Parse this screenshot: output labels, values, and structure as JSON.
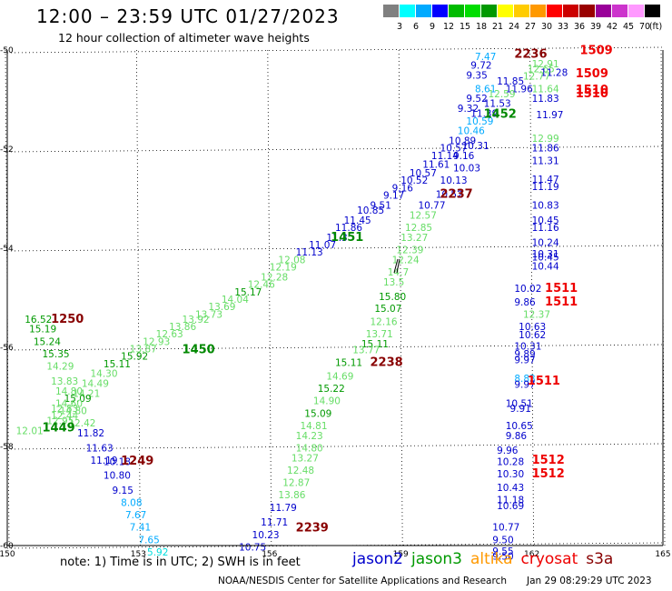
{
  "header": {
    "title": "12:00 – 23:59 UTC 01/27/2023",
    "subtitle": "12 hour collection of altimeter wave heights"
  },
  "scale": {
    "unit": "(ft)",
    "colors": [
      "#808080",
      "#00ffff",
      "#00aaff",
      "#0000ff",
      "#00bb00",
      "#00dd00",
      "#009900",
      "#ffff00",
      "#ffcc00",
      "#ff9900",
      "#ff0000",
      "#cc0000",
      "#990000",
      "#990099",
      "#cc33cc",
      "#ff99ff",
      "#000000"
    ],
    "labels": [
      "3",
      "6",
      "9",
      "12",
      "15",
      "18",
      "21",
      "24",
      "27",
      "30",
      "33",
      "36",
      "39",
      "42",
      "45",
      "70"
    ]
  },
  "axes": {
    "lon_ticks": [
      "150",
      "153",
      "156",
      "159",
      "162",
      "165"
    ],
    "lat_ticks": [
      "-50",
      "-52",
      "-54",
      "-56",
      "-58",
      "-60"
    ]
  },
  "passes": [
    {
      "id": "1509a",
      "text": "1509",
      "lon": 163.1,
      "lat": -50.08,
      "color": "#ee0000"
    },
    {
      "id": "1509b",
      "text": "1509",
      "lon": 163.0,
      "lat": -50.55,
      "color": "#ee0000"
    },
    {
      "id": "1510a",
      "text": "1510",
      "lon": 163.0,
      "lat": -50.88,
      "color": "#ee0000"
    },
    {
      "id": "1510b",
      "text": "1510",
      "lon": 163.0,
      "lat": -50.95,
      "color": "#ee0000"
    },
    {
      "id": "2236",
      "text": "2236",
      "lon": 161.6,
      "lat": -50.16,
      "color": "#880000"
    },
    {
      "id": "1452",
      "text": "1452",
      "lon": 160.9,
      "lat": -51.37,
      "color": "#008800"
    },
    {
      "id": "2237",
      "text": "2237",
      "lon": 159.9,
      "lat": -52.98,
      "color": "#880000"
    },
    {
      "id": "1451",
      "text": "1451",
      "lon": 157.4,
      "lat": -53.85,
      "color": "#008800"
    },
    {
      "id": "1511a",
      "text": "1511",
      "lon": 162.3,
      "lat": -54.88,
      "color": "#ee0000"
    },
    {
      "id": "1511b",
      "text": "1511",
      "lon": 162.3,
      "lat": -55.16,
      "color": "#ee0000"
    },
    {
      "id": "1511c",
      "text": "1511",
      "lon": 161.9,
      "lat": -56.75,
      "color": "#ee0000"
    },
    {
      "id": "1250",
      "text": "1250",
      "lon": 151.0,
      "lat": -55.5,
      "color": "#880000"
    },
    {
      "id": "1450",
      "text": "1450",
      "lon": 154.0,
      "lat": -56.12,
      "color": "#008800"
    },
    {
      "id": "2238",
      "text": "2238",
      "lon": 158.3,
      "lat": -56.38,
      "color": "#880000"
    },
    {
      "id": "1449",
      "text": "1449",
      "lon": 150.8,
      "lat": -57.7,
      "color": "#008800"
    },
    {
      "id": "1249",
      "text": "1249",
      "lon": 152.6,
      "lat": -58.37,
      "color": "#880000"
    },
    {
      "id": "1512a",
      "text": "1512",
      "lon": 162.0,
      "lat": -58.35,
      "color": "#ee0000"
    },
    {
      "id": "1512b",
      "text": "1512",
      "lon": 162.0,
      "lat": -58.62,
      "color": "#ee0000"
    },
    {
      "id": "2239",
      "text": "2239",
      "lon": 156.6,
      "lat": -59.72,
      "color": "#880000"
    }
  ],
  "swh_labels": [
    {
      "text": "7.47",
      "lon": 160.7,
      "lat": -50.2,
      "color": "#00aaff"
    },
    {
      "text": "9.72",
      "lon": 160.6,
      "lat": -50.38,
      "color": "#0000cc"
    },
    {
      "text": "12.91",
      "lon": 162.0,
      "lat": -50.35,
      "color": "#66dd66"
    },
    {
      "text": "12.65",
      "lon": 161.9,
      "lat": -50.45,
      "color": "#66dd66"
    },
    {
      "text": "9.35",
      "lon": 160.5,
      "lat": -50.58,
      "color": "#0000cc"
    },
    {
      "text": "11.85",
      "lon": 161.2,
      "lat": -50.7,
      "color": "#0000cc"
    },
    {
      "text": "11.28",
      "lon": 162.2,
      "lat": -50.52,
      "color": "#0000cc"
    },
    {
      "text": "12.77",
      "lon": 161.8,
      "lat": -50.6,
      "color": "#66dd66"
    },
    {
      "text": "8.61",
      "lon": 160.7,
      "lat": -50.85,
      "color": "#00aaff"
    },
    {
      "text": "11.96",
      "lon": 161.4,
      "lat": -50.85,
      "color": "#0000cc"
    },
    {
      "text": "9.52",
      "lon": 160.5,
      "lat": -51.05,
      "color": "#0000cc"
    },
    {
      "text": "12.59",
      "lon": 161.0,
      "lat": -50.95,
      "color": "#66dd66"
    },
    {
      "text": "11.53",
      "lon": 160.9,
      "lat": -51.15,
      "color": "#0000cc"
    },
    {
      "text": "11.64",
      "lon": 162.0,
      "lat": -50.85,
      "color": "#66dd66"
    },
    {
      "text": "11.83",
      "lon": 162.0,
      "lat": -51.05,
      "color": "#0000cc"
    },
    {
      "text": "9.32",
      "lon": 160.3,
      "lat": -51.25,
      "color": "#0000cc"
    },
    {
      "text": "11.39",
      "lon": 160.6,
      "lat": -51.35,
      "color": "#0000cc"
    },
    {
      "text": "11.97",
      "lon": 162.1,
      "lat": -51.38,
      "color": "#0000cc"
    },
    {
      "text": "10.59",
      "lon": 160.5,
      "lat": -51.5,
      "color": "#00aaff"
    },
    {
      "text": "10.46",
      "lon": 160.3,
      "lat": -51.7,
      "color": "#00aaff"
    },
    {
      "text": "10.89",
      "lon": 160.1,
      "lat": -51.9,
      "color": "#0000cc"
    },
    {
      "text": "12.99",
      "lon": 162.0,
      "lat": -51.85,
      "color": "#66dd66"
    },
    {
      "text": "10.31",
      "lon": 160.4,
      "lat": -52.0,
      "color": "#0000cc"
    },
    {
      "text": "10.57",
      "lon": 159.9,
      "lat": -52.05,
      "color": "#0000cc"
    },
    {
      "text": "11.86",
      "lon": 162.0,
      "lat": -52.05,
      "color": "#0000cc"
    },
    {
      "text": "11.14",
      "lon": 159.7,
      "lat": -52.2,
      "color": "#0000cc"
    },
    {
      "text": "9.16",
      "lon": 160.2,
      "lat": -52.2,
      "color": "#0000cc"
    },
    {
      "text": "11.31",
      "lon": 162.0,
      "lat": -52.3,
      "color": "#0000cc"
    },
    {
      "text": "11.61",
      "lon": 159.5,
      "lat": -52.38,
      "color": "#0000cc"
    },
    {
      "text": "10.03",
      "lon": 160.2,
      "lat": -52.45,
      "color": "#0000cc"
    },
    {
      "text": "10.57",
      "lon": 159.2,
      "lat": -52.55,
      "color": "#0000cc"
    },
    {
      "text": "10.13",
      "lon": 159.9,
      "lat": -52.7,
      "color": "#0000cc"
    },
    {
      "text": "11.47",
      "lon": 162.0,
      "lat": -52.68,
      "color": "#0000cc"
    },
    {
      "text": "11.19",
      "lon": 162.0,
      "lat": -52.83,
      "color": "#0000cc"
    },
    {
      "text": "10.52",
      "lon": 159.0,
      "lat": -52.7,
      "color": "#0000cc"
    },
    {
      "text": "9.16",
      "lon": 158.8,
      "lat": -52.85,
      "color": "#0000cc"
    },
    {
      "text": "10.52",
      "lon": 159.8,
      "lat": -52.98,
      "color": "#0000cc"
    },
    {
      "text": "9.17",
      "lon": 158.6,
      "lat": -53.0,
      "color": "#0000cc"
    },
    {
      "text": "10.77",
      "lon": 159.4,
      "lat": -53.2,
      "color": "#0000cc"
    },
    {
      "text": "9.51",
      "lon": 158.3,
      "lat": -53.2,
      "color": "#0000cc"
    },
    {
      "text": "10.83",
      "lon": 162.0,
      "lat": -53.2,
      "color": "#0000cc"
    },
    {
      "text": "10.85",
      "lon": 158.0,
      "lat": -53.3,
      "color": "#0000cc"
    },
    {
      "text": "12.57",
      "lon": 159.2,
      "lat": -53.4,
      "color": "#66dd66"
    },
    {
      "text": "10.45",
      "lon": 162.0,
      "lat": -53.5,
      "color": "#0000cc"
    },
    {
      "text": "11.45",
      "lon": 157.7,
      "lat": -53.5,
      "color": "#0000cc"
    },
    {
      "text": "11.16",
      "lon": 162.0,
      "lat": -53.65,
      "color": "#0000cc"
    },
    {
      "text": "11.86",
      "lon": 157.5,
      "lat": -53.65,
      "color": "#0000cc"
    },
    {
      "text": "12.85",
      "lon": 159.1,
      "lat": -53.65,
      "color": "#66dd66"
    },
    {
      "text": "11.3",
      "lon": 157.3,
      "lat": -53.85,
      "color": "#0000cc"
    },
    {
      "text": "13.27",
      "lon": 159.0,
      "lat": -53.85,
      "color": "#66dd66"
    },
    {
      "text": "10.24",
      "lon": 162.0,
      "lat": -53.95,
      "color": "#0000cc"
    },
    {
      "text": "11.07",
      "lon": 156.9,
      "lat": -54.0,
      "color": "#0000cc"
    },
    {
      "text": "12.39",
      "lon": 158.9,
      "lat": -54.1,
      "color": "#66dd66"
    },
    {
      "text": "10.31",
      "lon": 162.0,
      "lat": -54.18,
      "color": "#0000cc"
    },
    {
      "text": "11.13",
      "lon": 156.6,
      "lat": -54.15,
      "color": "#0000cc"
    },
    {
      "text": "10.45",
      "lon": 162.0,
      "lat": -54.25,
      "color": "#0000cc"
    },
    {
      "text": "12.08",
      "lon": 156.2,
      "lat": -54.3,
      "color": "#66dd66"
    },
    {
      "text": "12.24",
      "lon": 158.8,
      "lat": -54.3,
      "color": "#66dd66"
    },
    {
      "text": "10.44",
      "lon": 162.0,
      "lat": -54.43,
      "color": "#0000cc"
    },
    {
      "text": "12.19",
      "lon": 156.0,
      "lat": -54.45,
      "color": "#66dd66"
    },
    {
      "text": "14.7",
      "lon": 158.7,
      "lat": -54.55,
      "color": "#66dd66"
    },
    {
      "text": "12.28",
      "lon": 155.8,
      "lat": -54.65,
      "color": "#66dd66"
    },
    {
      "text": "13.5",
      "lon": 158.6,
      "lat": -54.75,
      "color": "#66dd66"
    },
    {
      "text": "12.46",
      "lon": 155.5,
      "lat": -54.8,
      "color": "#66dd66"
    },
    {
      "text": "10.02",
      "lon": 161.6,
      "lat": -54.88,
      "color": "#0000cc"
    },
    {
      "text": "15.17",
      "lon": 155.2,
      "lat": -54.95,
      "color": "#009900"
    },
    {
      "text": "15.80",
      "lon": 158.5,
      "lat": -55.05,
      "color": "#009900"
    },
    {
      "text": "14.04",
      "lon": 154.9,
      "lat": -55.1,
      "color": "#66dd66"
    },
    {
      "text": "9.86",
      "lon": 161.6,
      "lat": -55.16,
      "color": "#0000cc"
    },
    {
      "text": "13.69",
      "lon": 154.6,
      "lat": -55.25,
      "color": "#66dd66"
    },
    {
      "text": "15.07",
      "lon": 158.4,
      "lat": -55.28,
      "color": "#009900"
    },
    {
      "text": "13.73",
      "lon": 154.3,
      "lat": -55.4,
      "color": "#66dd66"
    },
    {
      "text": "12.37",
      "lon": 161.8,
      "lat": -55.4,
      "color": "#66dd66"
    },
    {
      "text": "13.92",
      "lon": 154.0,
      "lat": -55.5,
      "color": "#66dd66"
    },
    {
      "text": "12.16",
      "lon": 158.3,
      "lat": -55.55,
      "color": "#66dd66"
    },
    {
      "text": "13.86",
      "lon": 153.7,
      "lat": -55.65,
      "color": "#66dd66"
    },
    {
      "text": "10.63",
      "lon": 161.7,
      "lat": -55.65,
      "color": "#0000cc"
    },
    {
      "text": "10.62",
      "lon": 161.7,
      "lat": -55.82,
      "color": "#0000cc"
    },
    {
      "text": "13.71",
      "lon": 158.2,
      "lat": -55.8,
      "color": "#66dd66"
    },
    {
      "text": "12.63",
      "lon": 153.4,
      "lat": -55.8,
      "color": "#66dd66"
    },
    {
      "text": "16.52",
      "lon": 150.4,
      "lat": -55.5,
      "color": "#009900"
    },
    {
      "text": "15.19",
      "lon": 150.5,
      "lat": -55.7,
      "color": "#009900"
    },
    {
      "text": "12.93",
      "lon": 153.1,
      "lat": -55.95,
      "color": "#66dd66"
    },
    {
      "text": "15.11",
      "lon": 158.1,
      "lat": -56.0,
      "color": "#009900"
    },
    {
      "text": "15.24",
      "lon": 150.6,
      "lat": -55.95,
      "color": "#009900"
    },
    {
      "text": "13.87",
      "lon": 152.8,
      "lat": -56.1,
      "color": "#66dd66"
    },
    {
      "text": "10.31",
      "lon": 161.6,
      "lat": -56.05,
      "color": "#0000cc"
    },
    {
      "text": "13.77",
      "lon": 157.9,
      "lat": -56.12,
      "color": "#66dd66"
    },
    {
      "text": "15.35",
      "lon": 150.8,
      "lat": -56.2,
      "color": "#009900"
    },
    {
      "text": "15.92",
      "lon": 152.6,
      "lat": -56.25,
      "color": "#009900"
    },
    {
      "text": "9.89",
      "lon": 161.6,
      "lat": -56.2,
      "color": "#0000cc"
    },
    {
      "text": "9.97",
      "lon": 161.6,
      "lat": -56.32,
      "color": "#0000cc"
    },
    {
      "text": "15.11",
      "lon": 152.2,
      "lat": -56.4,
      "color": "#009900"
    },
    {
      "text": "15.11",
      "lon": 157.5,
      "lat": -56.38,
      "color": "#009900"
    },
    {
      "text": "14.29",
      "lon": 150.9,
      "lat": -56.45,
      "color": "#66dd66"
    },
    {
      "text": "14.30",
      "lon": 151.9,
      "lat": -56.6,
      "color": "#66dd66"
    },
    {
      "text": "14.69",
      "lon": 157.3,
      "lat": -56.65,
      "color": "#66dd66"
    },
    {
      "text": "13.83",
      "lon": 151.0,
      "lat": -56.75,
      "color": "#66dd66"
    },
    {
      "text": "8.83",
      "lon": 161.6,
      "lat": -56.7,
      "color": "#00aaff"
    },
    {
      "text": "9.97",
      "lon": 161.6,
      "lat": -56.82,
      "color": "#0000cc"
    },
    {
      "text": "14.49",
      "lon": 151.7,
      "lat": -56.8,
      "color": "#66dd66"
    },
    {
      "text": "15.22",
      "lon": 157.1,
      "lat": -56.9,
      "color": "#009900"
    },
    {
      "text": "14.80",
      "lon": 151.1,
      "lat": -56.95,
      "color": "#66dd66"
    },
    {
      "text": "14.21",
      "lon": 151.5,
      "lat": -57.0,
      "color": "#66dd66"
    },
    {
      "text": "15.09",
      "lon": 151.3,
      "lat": -57.1,
      "color": "#009900"
    },
    {
      "text": "14.90",
      "lon": 157.0,
      "lat": -57.15,
      "color": "#66dd66"
    },
    {
      "text": "14.60",
      "lon": 151.1,
      "lat": -57.2,
      "color": "#66dd66"
    },
    {
      "text": "10.51",
      "lon": 161.4,
      "lat": -57.2,
      "color": "#0000cc"
    },
    {
      "text": "12.83",
      "lon": 151.0,
      "lat": -57.3,
      "color": "#66dd66"
    },
    {
      "text": "9.91",
      "lon": 161.5,
      "lat": -57.3,
      "color": "#0000cc"
    },
    {
      "text": "14.80",
      "lon": 151.2,
      "lat": -57.35,
      "color": "#66dd66"
    },
    {
      "text": "15.09",
      "lon": 156.8,
      "lat": -57.4,
      "color": "#009900"
    },
    {
      "text": "12.44",
      "lon": 151.0,
      "lat": -57.45,
      "color": "#66dd66"
    },
    {
      "text": "12.95",
      "lon": 150.9,
      "lat": -57.55,
      "color": "#66dd66"
    },
    {
      "text": "12.42",
      "lon": 151.4,
      "lat": -57.6,
      "color": "#66dd66"
    },
    {
      "text": "14.81",
      "lon": 156.7,
      "lat": -57.65,
      "color": "#66dd66"
    },
    {
      "text": "10.65",
      "lon": 161.4,
      "lat": -57.65,
      "color": "#0000cc"
    },
    {
      "text": "12.01",
      "lon": 150.2,
      "lat": -57.75,
      "color": "#66dd66"
    },
    {
      "text": "11.82",
      "lon": 151.6,
      "lat": -57.8,
      "color": "#0000cc"
    },
    {
      "text": "14.23",
      "lon": 156.6,
      "lat": -57.85,
      "color": "#66dd66"
    },
    {
      "text": "9.86",
      "lon": 161.4,
      "lat": -57.85,
      "color": "#0000cc"
    },
    {
      "text": "11.63",
      "lon": 151.8,
      "lat": -58.1,
      "color": "#0000cc"
    },
    {
      "text": "14.80",
      "lon": 156.6,
      "lat": -58.1,
      "color": "#66dd66"
    },
    {
      "text": "9.96",
      "lon": 161.2,
      "lat": -58.15,
      "color": "#0000cc"
    },
    {
      "text": "11.19",
      "lon": 151.9,
      "lat": -58.35,
      "color": "#0000cc"
    },
    {
      "text": "10.18",
      "lon": 152.2,
      "lat": -58.38,
      "color": "#0000cc"
    },
    {
      "text": "13.27",
      "lon": 156.5,
      "lat": -58.3,
      "color": "#66dd66"
    },
    {
      "text": "10.28",
      "lon": 161.2,
      "lat": -58.38,
      "color": "#0000cc"
    },
    {
      "text": "10.80",
      "lon": 152.2,
      "lat": -58.65,
      "color": "#0000cc"
    },
    {
      "text": "12.48",
      "lon": 156.4,
      "lat": -58.55,
      "color": "#66dd66"
    },
    {
      "text": "10.30",
      "lon": 161.2,
      "lat": -58.62,
      "color": "#0000cc"
    },
    {
      "text": "12.87",
      "lon": 156.3,
      "lat": -58.8,
      "color": "#66dd66"
    },
    {
      "text": "10.43",
      "lon": 161.2,
      "lat": -58.9,
      "color": "#0000cc"
    },
    {
      "text": "9.15",
      "lon": 152.4,
      "lat": -58.95,
      "color": "#0000cc"
    },
    {
      "text": "13.86",
      "lon": 156.2,
      "lat": -59.05,
      "color": "#66dd66"
    },
    {
      "text": "11.18",
      "lon": 161.2,
      "lat": -59.15,
      "color": "#0000cc"
    },
    {
      "text": "8.08",
      "lon": 152.6,
      "lat": -59.2,
      "color": "#00aaff"
    },
    {
      "text": "10.69",
      "lon": 161.2,
      "lat": -59.27,
      "color": "#0000cc"
    },
    {
      "text": "11.79",
      "lon": 156.0,
      "lat": -59.3,
      "color": "#0000cc"
    },
    {
      "text": "7.67",
      "lon": 152.7,
      "lat": -59.45,
      "color": "#00aaff"
    },
    {
      "text": "11.71",
      "lon": 155.8,
      "lat": -59.6,
      "color": "#0000cc"
    },
    {
      "text": "7.41",
      "lon": 152.8,
      "lat": -59.7,
      "color": "#00aaff"
    },
    {
      "text": "10.77",
      "lon": 161.1,
      "lat": -59.7,
      "color": "#0000cc"
    },
    {
      "text": "10.23",
      "lon": 155.6,
      "lat": -59.85,
      "color": "#0000cc"
    },
    {
      "text": "7.65",
      "lon": 153.0,
      "lat": -59.95,
      "color": "#00aaff"
    },
    {
      "text": "9.50",
      "lon": 161.1,
      "lat": -59.95,
      "color": "#0000cc"
    },
    {
      "text": "10.75",
      "lon": 155.3,
      "lat": -60.1,
      "color": "#0000cc"
    },
    {
      "text": "5.92",
      "lon": 153.2,
      "lat": -60.2,
      "color": "#00dddd"
    },
    {
      "text": "9.55",
      "lon": 161.1,
      "lat": -60.18,
      "color": "#0000cc"
    },
    {
      "text": "9.50",
      "lon": 161.1,
      "lat": -60.28,
      "color": "#0000cc"
    }
  ],
  "footer": {
    "note": "note:  1) Time is in UTC;  2) SWH is in feet",
    "legend": [
      {
        "text": "jason2",
        "color": "#0000cc"
      },
      {
        "text": "jason3",
        "color": "#009900"
      },
      {
        "text": "altika",
        "color": "#ff9900"
      },
      {
        "text": "cryosat",
        "color": "#ee0000"
      },
      {
        "text": "s3a",
        "color": "#880000"
      }
    ],
    "credit": "NOAA/NESDIS Center for Satellite Applications and Research",
    "timestamp": "Jan 29 08:29:29 UTC 2023"
  }
}
